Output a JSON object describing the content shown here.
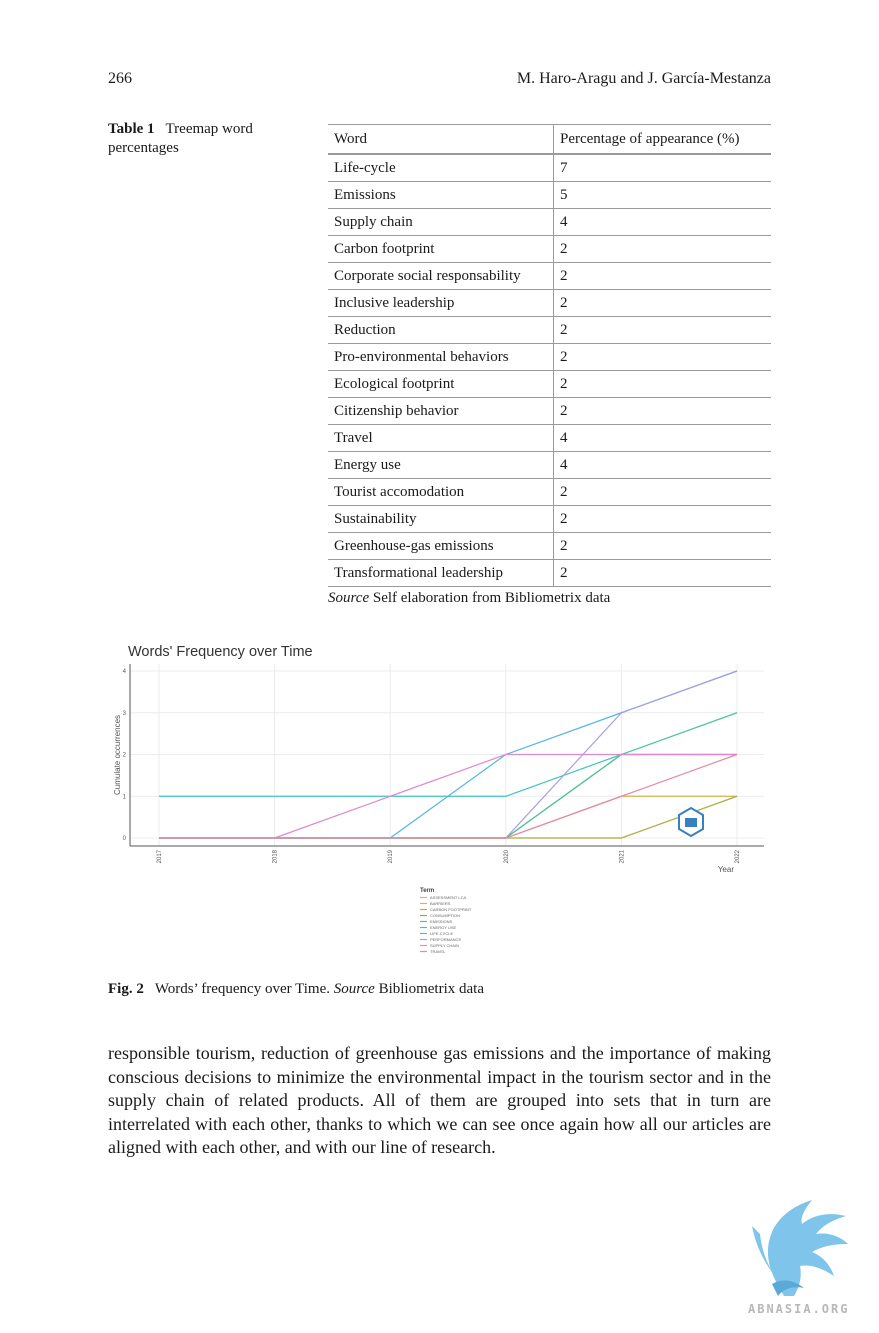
{
  "header": {
    "page_number": "266",
    "authors": "M. Haro-Aragu and J. García-Mestanza"
  },
  "table": {
    "label": "Table 1",
    "title": "Treemap word percentages",
    "columns": [
      "Word",
      "Percentage of appearance (%)"
    ],
    "rows": [
      [
        "Life-cycle",
        "7"
      ],
      [
        "Emissions",
        "5"
      ],
      [
        "Supply chain",
        "4"
      ],
      [
        "Carbon footprint",
        "2"
      ],
      [
        "Corporate social responsability",
        "2"
      ],
      [
        "Inclusive leadership",
        "2"
      ],
      [
        "Reduction",
        "2"
      ],
      [
        "Pro-environmental behaviors",
        "2"
      ],
      [
        "Ecological footprint",
        "2"
      ],
      [
        "Citizenship behavior",
        "2"
      ],
      [
        "Travel",
        "4"
      ],
      [
        "Energy use",
        "4"
      ],
      [
        "Tourist accomodation",
        "2"
      ],
      [
        "Sustainability",
        "2"
      ],
      [
        "Greenhouse-gas emissions",
        "2"
      ],
      [
        "Transformational leadership",
        "2"
      ]
    ],
    "source_label": "Source",
    "source_text": "Self elaboration from Bibliometrix data"
  },
  "chart_data": {
    "type": "line",
    "title": "Words' Frequency over Time",
    "xlabel": "Year",
    "ylabel": "Cumulate occurrences",
    "x": [
      2017,
      2018,
      2019,
      2020,
      2021,
      2022
    ],
    "xlim": [
      2017,
      2022
    ],
    "ylim": [
      0,
      4
    ],
    "y_ticks": [
      0,
      1,
      2,
      3,
      4
    ],
    "grid": true,
    "legend_title": "Term",
    "legend_position": "bottom",
    "series": [
      {
        "name": "ASSESSMENT LCA",
        "color": "#f2a27e",
        "values": [
          0,
          0,
          0,
          0,
          0,
          1
        ]
      },
      {
        "name": "BARRIERS",
        "color": "#d4b24c",
        "values": [
          0,
          0,
          0,
          0,
          1,
          1
        ]
      },
      {
        "name": "CARBON FOOTPRINT",
        "color": "#a9b84a",
        "values": [
          0,
          0,
          0,
          0,
          0,
          1
        ]
      },
      {
        "name": "CONSUMPTION",
        "color": "#6cc04a",
        "values": [
          0,
          0,
          0,
          0,
          2,
          2
        ]
      },
      {
        "name": "EMISSIONS",
        "color": "#4cc29a",
        "values": [
          0,
          0,
          0,
          0,
          2,
          3
        ]
      },
      {
        "name": "ENERGY USE",
        "color": "#3fc3c3",
        "values": [
          1,
          1,
          1,
          1,
          2,
          2
        ]
      },
      {
        "name": "LIFE-CYCLE",
        "color": "#55b6e2",
        "values": [
          0,
          0,
          0,
          2,
          3,
          4
        ]
      },
      {
        "name": "PERFORMANCE",
        "color": "#a79ee0",
        "values": [
          0,
          0,
          0,
          0,
          3,
          4
        ]
      },
      {
        "name": "SUPPLY CHAIN",
        "color": "#dd8ad0",
        "values": [
          0,
          0,
          1,
          2,
          2,
          2
        ]
      },
      {
        "name": "TRAVEL",
        "color": "#e688a8",
        "values": [
          0,
          0,
          0,
          0,
          1,
          2
        ]
      }
    ]
  },
  "figure": {
    "label": "Fig. 2",
    "caption": "Words’ frequency over Time.",
    "source_label": "Source",
    "source_text": "Bibliometrix data"
  },
  "body_text": "responsible tourism, reduction of greenhouse gas emissions and the importance of making conscious decisions to minimize the environmental impact in the tourism sector and in the supply chain of related products. All of them are grouped into sets that in turn are interrelated with each other, thanks to which we can see once again how all our articles are aligned with each other, and with our line of research.",
  "watermark": {
    "text": "ABNASIA.ORG"
  }
}
